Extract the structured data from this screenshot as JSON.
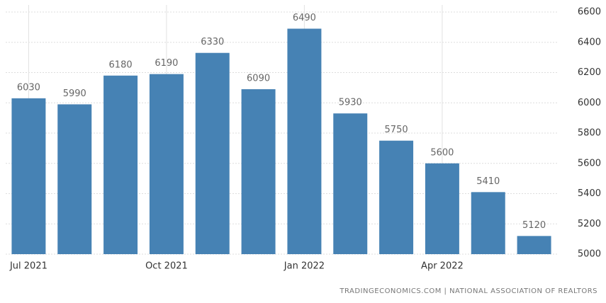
{
  "chart_data": {
    "type": "bar",
    "categories": [
      "Jul 2021",
      null,
      null,
      "Oct 2021",
      null,
      null,
      "Jan 2022",
      null,
      null,
      "Apr 2022",
      null,
      null
    ],
    "values": [
      6030,
      5990,
      6180,
      6190,
      6330,
      6090,
      6490,
      5930,
      5750,
      5600,
      5410,
      5120
    ],
    "color": "#4682b4",
    "ylim": [
      5000,
      6600
    ],
    "yticks": [
      5000,
      5200,
      5400,
      5600,
      5800,
      6000,
      6200,
      6400,
      6600
    ],
    "grid": true,
    "source": "TRADINGECONOMICS.COM | NATIONAL ASSOCIATION OF REALTORS"
  }
}
